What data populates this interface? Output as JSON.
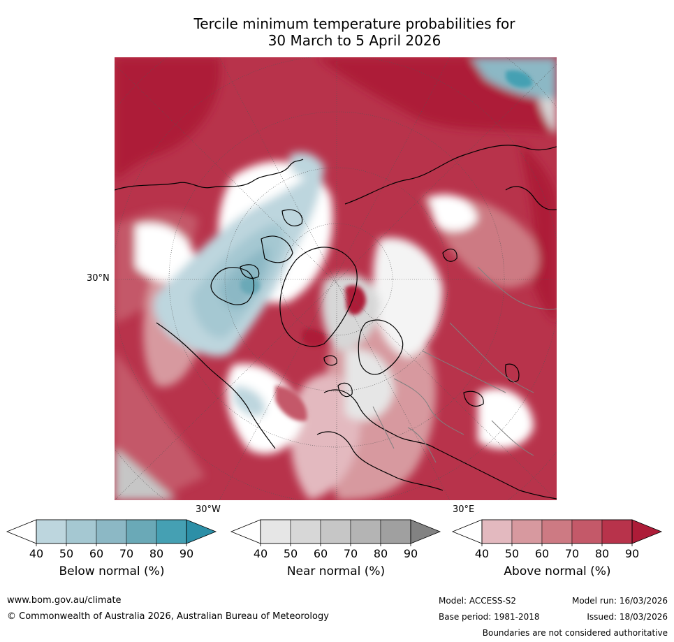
{
  "title": {
    "line1": "Tercile minimum temperature probabilities for",
    "line2": "30 March to 5 April 2026"
  },
  "map": {
    "labels": {
      "lat": "30°N",
      "lon_west": "30°W",
      "lon_east": "30°E"
    },
    "palette": {
      "above": [
        "#e3b9bf",
        "#d7999f",
        "#cd7a83",
        "#c45969",
        "#b8334b",
        "#ad1c38"
      ],
      "below": [
        "#bdd6de",
        "#a5c8d2",
        "#8cb8c5",
        "#6aa9b7",
        "#45a0b3",
        "#2c8fa7"
      ],
      "near": [
        "#e6e6e6",
        "#d7d7d7",
        "#c6c6c6",
        "#b4b4b4",
        "#a0a0a0",
        "#828282"
      ],
      "land": "#ffffff",
      "coast": "#000000",
      "border": "#808080"
    }
  },
  "colorbars": [
    {
      "title": "Below normal (%)",
      "ticks": [
        "40",
        "50",
        "60",
        "70",
        "80",
        "90"
      ],
      "colors": [
        "#bdd6de",
        "#a5c8d2",
        "#8cb8c5",
        "#6aa9b7",
        "#45a0b3",
        "#2c8fa7"
      ]
    },
    {
      "title": "Near normal (%)",
      "ticks": [
        "40",
        "50",
        "60",
        "70",
        "80",
        "90"
      ],
      "colors": [
        "#e6e6e6",
        "#d7d7d7",
        "#c6c6c6",
        "#b4b4b4",
        "#a0a0a0",
        "#828282"
      ]
    },
    {
      "title": "Above normal (%)",
      "ticks": [
        "40",
        "50",
        "60",
        "70",
        "80",
        "90"
      ],
      "colors": [
        "#e3b9bf",
        "#d7999f",
        "#cd7a83",
        "#c45969",
        "#b8334b",
        "#ad1c38"
      ]
    }
  ],
  "footer": {
    "website": "www.bom.gov.au/climate",
    "copyright": "© Commonwealth of Australia 2026, Australian Bureau of Meteorology",
    "model": "Model: ACCESS-S2",
    "model_run": "Model run: 16/03/2026",
    "base_period": "Base period: 1981-2018",
    "issued": "Issued: 18/03/2026",
    "disclaimer": "Boundaries are not considered authoritative"
  }
}
